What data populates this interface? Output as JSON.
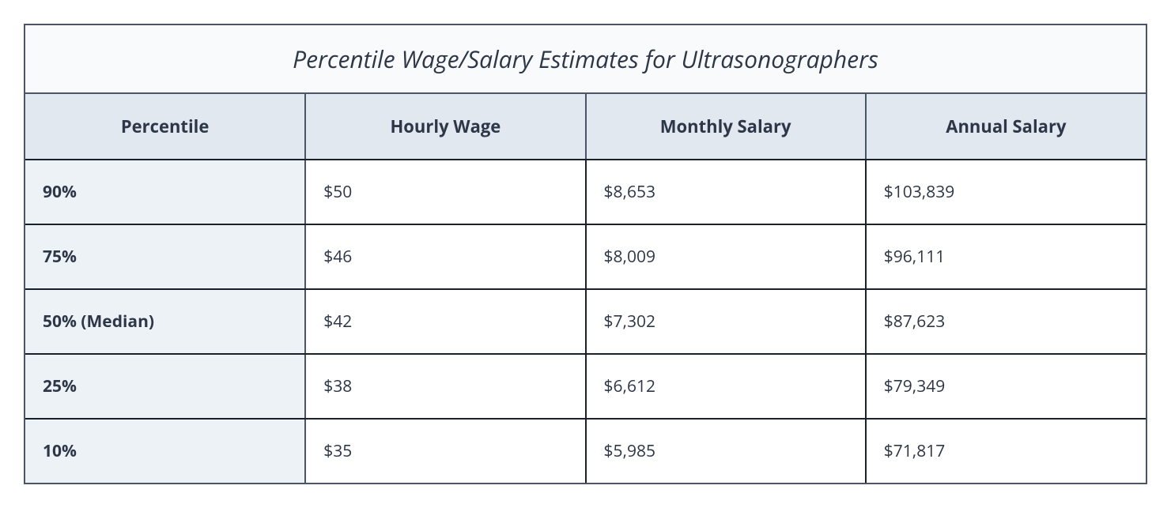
{
  "table": {
    "title": "Percentile Wage/Salary Estimates for Ultrasonographers",
    "columns": [
      "Percentile",
      "Hourly Wage",
      "Monthly Salary",
      "Annual Salary"
    ],
    "rows": [
      {
        "percentile": "90%",
        "hourly": "$50",
        "monthly": "$8,653",
        "annual": "$103,839"
      },
      {
        "percentile": "75%",
        "hourly": "$46",
        "monthly": "$8,009",
        "annual": "$96,111"
      },
      {
        "percentile": "50% (Median)",
        "hourly": "$42",
        "monthly": "$7,302",
        "annual": "$87,623"
      },
      {
        "percentile": "25%",
        "hourly": "$38",
        "monthly": "$6,612",
        "annual": "$79,349"
      },
      {
        "percentile": "10%",
        "hourly": "$35",
        "monthly": "$5,985",
        "annual": "$71,817"
      }
    ],
    "colors": {
      "border_outer": "#4a5568",
      "border_inner": "#1a202c",
      "title_bg": "#f8fafc",
      "header_bg": "#e2e8f0",
      "rowhead_bg": "#edf2f7",
      "cell_bg": "#ffffff",
      "text": "#2d3748"
    },
    "typography": {
      "title_fontsize": 30,
      "title_style": "italic",
      "header_fontsize": 22,
      "header_weight": 700,
      "cell_fontsize": 21,
      "rowhead_weight": 700
    },
    "column_widths_pct": [
      24,
      25.33,
      25.33,
      25.33
    ]
  }
}
